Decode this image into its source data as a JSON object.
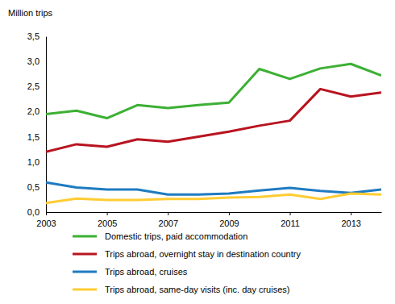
{
  "chart_data": {
    "type": "line",
    "y_label": "Million trips",
    "x": [
      2003,
      2004,
      2005,
      2006,
      2007,
      2008,
      2009,
      2010,
      2011,
      2012,
      2013,
      2014
    ],
    "xlim": [
      2003,
      2014
    ],
    "xticks": [
      2003,
      2005,
      2007,
      2009,
      2011,
      2013
    ],
    "ylim": [
      0,
      3.5
    ],
    "yticks": [
      {
        "value": 0,
        "label": "0,0"
      },
      {
        "value": 0.5,
        "label": "0,5"
      },
      {
        "value": 1,
        "label": "1,0"
      },
      {
        "value": 1.5,
        "label": "1,5"
      },
      {
        "value": 2,
        "label": "2,0"
      },
      {
        "value": 2.5,
        "label": "2,5"
      },
      {
        "value": 3,
        "label": "3,0"
      },
      {
        "value": 3.5,
        "label": "3,5"
      }
    ],
    "grid": false,
    "legend": "bottom",
    "series": [
      {
        "name": "Domestic trips, paid accommodation",
        "color": "#3cb034",
        "values": [
          1.95,
          2.02,
          1.87,
          2.13,
          2.07,
          2.13,
          2.18,
          2.85,
          2.65,
          2.86,
          2.95,
          2.72
        ]
      },
      {
        "name": "Trips abroad, overnight stay in destination country",
        "color": "#b81420",
        "values": [
          1.2,
          1.35,
          1.3,
          1.45,
          1.4,
          1.5,
          1.6,
          1.72,
          1.82,
          2.45,
          2.3,
          2.38
        ]
      },
      {
        "name": "Trips abroad, cruises",
        "color": "#1f7bc1",
        "values": [
          0.59,
          0.49,
          0.45,
          0.45,
          0.35,
          0.35,
          0.37,
          0.43,
          0.48,
          0.42,
          0.38,
          0.45
        ]
      },
      {
        "name": "Trips abroad, same-day visits (inc. day cruises)",
        "color": "#ffcc33",
        "values": [
          0.18,
          0.27,
          0.24,
          0.24,
          0.26,
          0.26,
          0.29,
          0.3,
          0.35,
          0.26,
          0.37,
          0.35
        ]
      }
    ]
  }
}
